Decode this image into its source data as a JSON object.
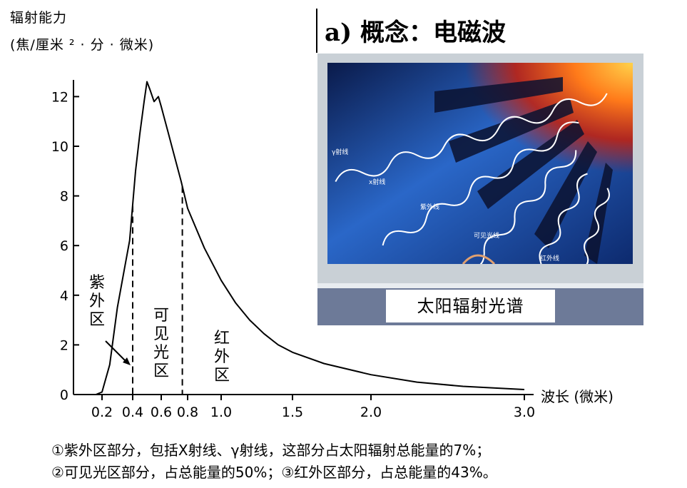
{
  "y_axis_title": {
    "line1": "辐射能力",
    "line2": "(焦/厘米 ² · 分 · 微米)"
  },
  "concept_title": "a) 概念：电磁波",
  "image_caption": "太阳辐射光谱",
  "image_labels": {
    "gamma": "γ射线",
    "xray": "x射线",
    "uv": "紫外线",
    "visible": "可见光线",
    "infrared": "红外线"
  },
  "regions": {
    "uv": "紫外区",
    "visible": "可见光区",
    "ir": "红外区"
  },
  "x_unit": "波长 (微米)",
  "notes": {
    "line1": "①紫外区部分，包括X射线、γ射线，这部分占太阳辐射总能量的7%；",
    "line2": "②可见光区部分，占总能量的50%；③红外区部分，占总能量的43%。"
  },
  "chart_data": {
    "type": "line",
    "title": "",
    "xlabel": "波长 (微米)",
    "ylabel": "辐射能力 (焦/厘米²·分·微米)",
    "x_ticks": [
      "0.2",
      "0.4",
      "0.6",
      "0.8",
      "1.0",
      "1.5",
      "2.0",
      "3.0"
    ],
    "x_tick_values": [
      0.2,
      0.4,
      0.6,
      0.8,
      1.0,
      1.5,
      2.0,
      3.0
    ],
    "y_ticks": [
      "0",
      "2",
      "4",
      "6",
      "8",
      "10",
      "12"
    ],
    "y_tick_values": [
      0,
      2,
      4,
      6,
      8,
      10,
      12
    ],
    "ylim": [
      0,
      13
    ],
    "dividers": [
      0.4,
      0.76
    ],
    "series": [
      {
        "x": [
          0.16,
          0.2,
          0.25,
          0.3,
          0.35,
          0.38,
          0.42,
          0.45,
          0.48,
          0.5,
          0.52,
          0.55,
          0.58,
          0.6,
          0.62,
          0.65,
          0.7,
          0.75,
          0.8,
          0.9,
          1.0,
          1.1,
          1.2,
          1.3,
          1.4,
          1.5,
          1.7,
          2.0,
          2.3,
          2.6,
          3.0
        ],
        "values": [
          0.0,
          0.1,
          1.2,
          3.5,
          5.2,
          6.2,
          9.0,
          10.5,
          11.8,
          12.6,
          12.3,
          11.8,
          12.0,
          11.6,
          11.2,
          10.6,
          9.6,
          8.6,
          7.5,
          5.9,
          4.6,
          3.7,
          3.0,
          2.45,
          2.0,
          1.7,
          1.25,
          0.8,
          0.5,
          0.33,
          0.2
        ]
      }
    ]
  }
}
